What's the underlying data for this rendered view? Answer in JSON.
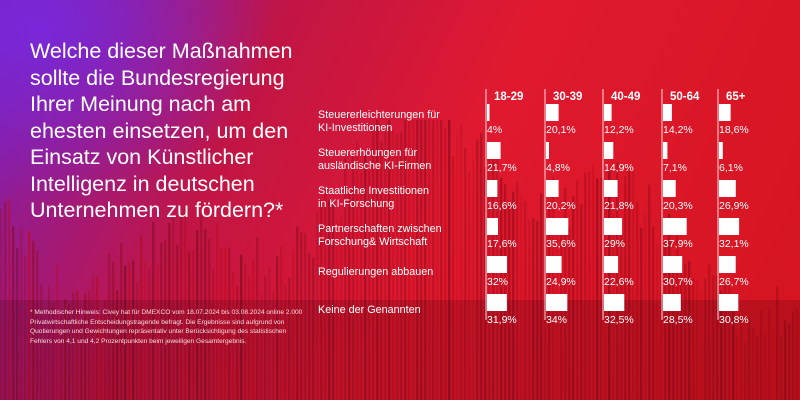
{
  "question": "Welche dieser Maßnahmen sollte die Bundesregierung Ihrer Meinung nach am ehesten einsetzen, um den Einsatz von Künstlicher Intelligenz in deutschen Unternehmen zu fördern?*",
  "footnote": "* Methodischer Hinweis: Civey hat für DMEXCO vom 18.07.2024 bis 03.08.2024 online 2.000 Privatwirtschaftliche Entscheidungstragende befragt. Die Ergebnisse sind aufgrund von Quotierungen und Gewichtungen repräsentativ unter Berücksichtigung des statistischen Fehlers von 4,1 und 4,2 Prozentpunkten beim jeweiligen Gesamtergebnis.",
  "colors": {
    "bar": "#ffffff",
    "text": "#ffffff",
    "accent_red": "#e0192f",
    "accent_purple": "#7a1fb8"
  },
  "chart_data": {
    "type": "bar",
    "categories": [
      "18-29",
      "30-39",
      "40-49",
      "50-64",
      "65+"
    ],
    "series": [
      {
        "name": "Steuererleichterungen für KI-Investitionen",
        "values": [
          4,
          20.1,
          12.2,
          14.2,
          18.6
        ],
        "labels": [
          "4%",
          "20,1%",
          "12,2%",
          "14,2%",
          "18,6%"
        ]
      },
      {
        "name": "Steuererhöungen für ausländische KI-Firmen",
        "values": [
          21.7,
          4.8,
          14.9,
          7.1,
          6.1
        ],
        "labels": [
          "21,7%",
          "4,8%",
          "14,9%",
          "7,1%",
          "6,1%"
        ]
      },
      {
        "name": "Staatliche Investitionen in KI-Forschung",
        "values": [
          16.6,
          20.2,
          21.8,
          20.3,
          26.9
        ],
        "labels": [
          "16,6%",
          "20,2%",
          "21,8%",
          "20,3%",
          "26,9%"
        ]
      },
      {
        "name": "Partnerschaften zwischen Forschung& Wirtschaft",
        "values": [
          17.6,
          35.6,
          29,
          37.9,
          32.1
        ],
        "labels": [
          "17,6%",
          "35,6%",
          "29%",
          "37,9%",
          "32,1%"
        ]
      },
      {
        "name": "Regulierungen abbauen",
        "values": [
          32,
          24.9,
          22.6,
          30.7,
          26.7
        ],
        "labels": [
          "32%",
          "24,9%",
          "22,6%",
          "30,7%",
          "26,7%"
        ]
      },
      {
        "name": "Keine der Genannten",
        "values": [
          31.9,
          34,
          32.5,
          28.5,
          30.8
        ],
        "labels": [
          "31,9%",
          "34%",
          "32,5%",
          "28,5%",
          "30,8%"
        ]
      }
    ],
    "row_labels": [
      [
        "Steuererleichterungen für",
        "KI-Investitionen"
      ],
      [
        "Steuererhöungen für",
        "ausländische KI-Firmen"
      ],
      [
        "Staatliche Investitionen",
        "in KI-Forschung"
      ],
      [
        "Partnerschaften zwischen",
        "Forschung& Wirtschaft"
      ],
      [
        "Regulierungen abbauen"
      ],
      [
        "Keine der Genannten"
      ]
    ]
  }
}
